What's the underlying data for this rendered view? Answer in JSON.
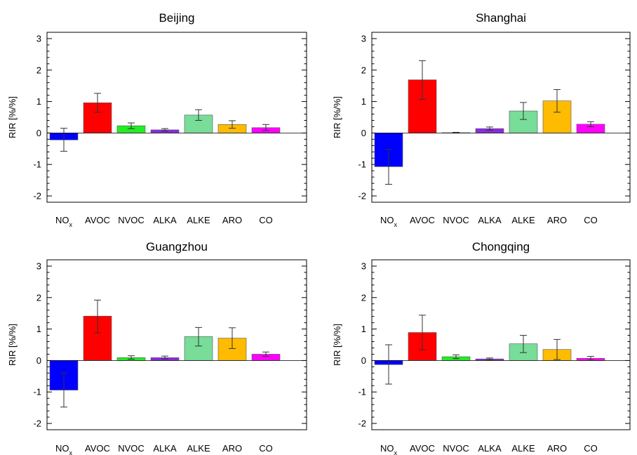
{
  "chart_data": [
    {
      "type": "bar",
      "title": "Beijing",
      "ylabel": "RIR [%/%]",
      "ylim": [
        -2.2,
        3.2
      ],
      "yticks": [
        -2,
        -1,
        0,
        1,
        2,
        3
      ],
      "categories": [
        "NOx",
        "AVOC",
        "NVOC",
        "ALKA",
        "ALKE",
        "ARO",
        "CO"
      ],
      "values": [
        -0.22,
        0.96,
        0.23,
        0.1,
        0.57,
        0.27,
        0.17
      ],
      "error_low": [
        -0.58,
        0.66,
        0.14,
        0.06,
        0.4,
        0.15,
        0.08
      ],
      "error_high": [
        0.15,
        1.26,
        0.32,
        0.14,
        0.74,
        0.39,
        0.27
      ],
      "colors": [
        "#0000ff",
        "#ff0000",
        "#22ee22",
        "#8a2be2",
        "#77dd99",
        "#ffbb00",
        "#ff00ff"
      ]
    },
    {
      "type": "bar",
      "title": "Shanghai",
      "ylabel": "RIR [%/%]",
      "ylim": [
        -2.2,
        3.2
      ],
      "yticks": [
        -2,
        -1,
        0,
        1,
        2,
        3
      ],
      "categories": [
        "NOx",
        "AVOC",
        "NVOC",
        "ALKA",
        "ALKE",
        "ARO",
        "CO"
      ],
      "values": [
        -1.07,
        1.69,
        0.01,
        0.14,
        0.7,
        1.02,
        0.28
      ],
      "error_low": [
        -1.63,
        1.07,
        0.0,
        0.09,
        0.43,
        0.66,
        0.2
      ],
      "error_high": [
        -0.52,
        2.3,
        0.02,
        0.19,
        0.97,
        1.38,
        0.36
      ],
      "colors": [
        "#0000ff",
        "#ff0000",
        "#22ee22",
        "#8a2be2",
        "#77dd99",
        "#ffbb00",
        "#ff00ff"
      ]
    },
    {
      "type": "bar",
      "title": "Guangzhou",
      "ylabel": "RIR [%/%]",
      "ylim": [
        -2.2,
        3.2
      ],
      "yticks": [
        -2,
        -1,
        0,
        1,
        2,
        3
      ],
      "categories": [
        "NOx",
        "AVOC",
        "NVOC",
        "ALKA",
        "ALKE",
        "ARO",
        "CO"
      ],
      "values": [
        -0.94,
        1.41,
        0.09,
        0.09,
        0.76,
        0.71,
        0.2
      ],
      "error_low": [
        -1.48,
        0.88,
        0.04,
        0.05,
        0.46,
        0.38,
        0.13
      ],
      "error_high": [
        -0.4,
        1.92,
        0.15,
        0.14,
        1.05,
        1.04,
        0.27
      ],
      "colors": [
        "#0000ff",
        "#ff0000",
        "#22ee22",
        "#8a2be2",
        "#77dd99",
        "#ffbb00",
        "#ff00ff"
      ]
    },
    {
      "type": "bar",
      "title": "Chongqing",
      "ylabel": "RIR [%/%]",
      "ylim": [
        -2.2,
        3.2
      ],
      "yticks": [
        -2,
        -1,
        0,
        1,
        2,
        3
      ],
      "categories": [
        "NOx",
        "AVOC",
        "NVOC",
        "ALKA",
        "ALKE",
        "ARO",
        "CO"
      ],
      "values": [
        -0.13,
        0.89,
        0.12,
        0.05,
        0.53,
        0.35,
        0.07
      ],
      "error_low": [
        -0.75,
        0.34,
        0.06,
        0.02,
        0.25,
        0.03,
        0.01
      ],
      "error_high": [
        0.5,
        1.44,
        0.18,
        0.08,
        0.8,
        0.67,
        0.13
      ],
      "colors": [
        "#0000ff",
        "#ff0000",
        "#22ee22",
        "#8a2be2",
        "#77dd99",
        "#ffbb00",
        "#ff00ff"
      ]
    }
  ]
}
